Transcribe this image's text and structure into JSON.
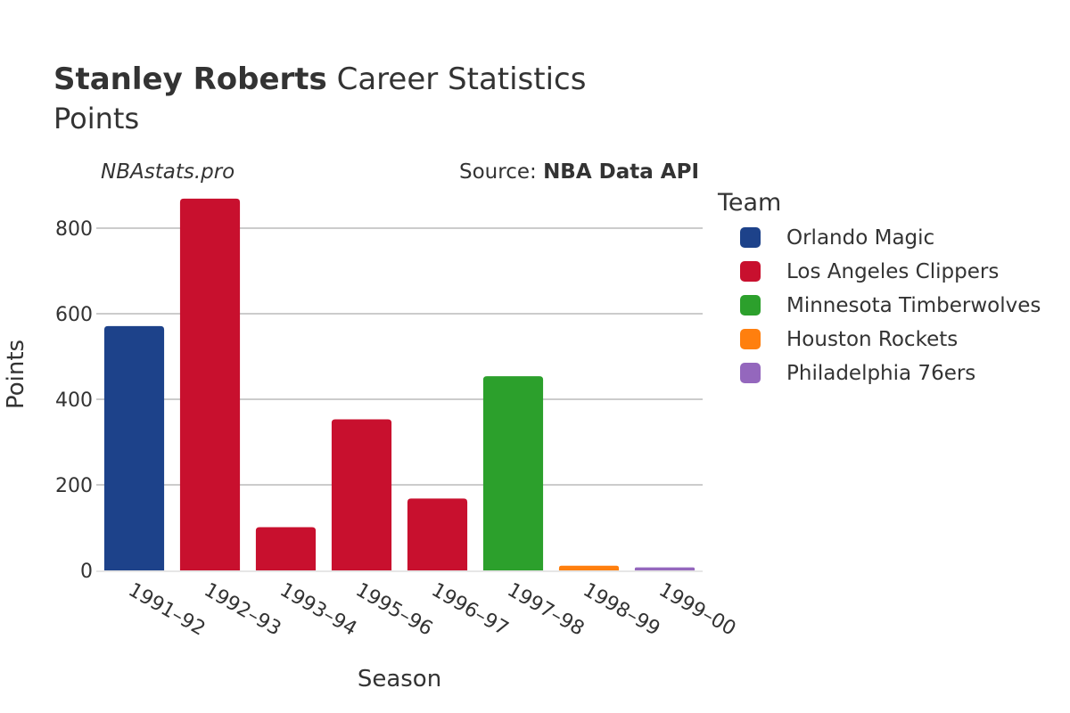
{
  "header": {
    "player_name": "Stanley Roberts",
    "title_rest": " Career Statistics",
    "subtitle": "Points"
  },
  "watermark": "NBAstats.pro",
  "source": {
    "prefix": "Source: ",
    "name": "NBA Data API"
  },
  "legend": {
    "title": "Team",
    "items": [
      {
        "name": "Orlando Magic",
        "color": "#1d428a"
      },
      {
        "name": "Los Angeles Clippers",
        "color": "#c8102e"
      },
      {
        "name": "Minnesota Timberwolves",
        "color": "#2ca02c"
      },
      {
        "name": "Houston Rockets",
        "color": "#ff7f0e"
      },
      {
        "name": "Philadelphia 76ers",
        "color": "#9467bd"
      }
    ]
  },
  "chart_data": {
    "type": "bar",
    "title": "Stanley Roberts Career Statistics",
    "subtitle": "Points",
    "xlabel": "Season",
    "ylabel": "Points",
    "ylim": [
      0,
      900
    ],
    "yticks": [
      0,
      200,
      400,
      600,
      800
    ],
    "grid": true,
    "legend_position": "right",
    "categories": [
      "1991–92",
      "1992–93",
      "1993–94",
      "1995–96",
      "1996–97",
      "1997–98",
      "1998–99",
      "1999–00"
    ],
    "values": [
      571,
      869,
      101,
      353,
      168,
      454,
      11,
      7
    ],
    "teams": [
      "Orlando Magic",
      "Los Angeles Clippers",
      "Los Angeles Clippers",
      "Los Angeles Clippers",
      "Los Angeles Clippers",
      "Minnesota Timberwolves",
      "Houston Rockets",
      "Philadelphia 76ers"
    ]
  }
}
